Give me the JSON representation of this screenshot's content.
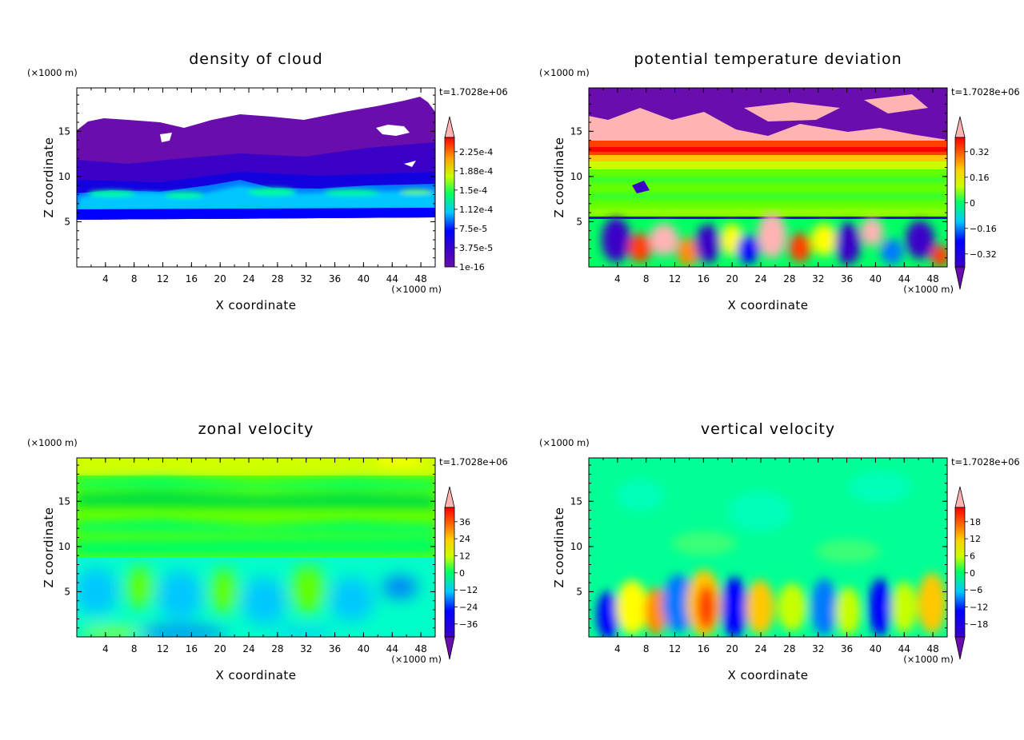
{
  "chart_data": [
    {
      "type": "heatmap",
      "title": "density of cloud",
      "xlabel": "X coordinate",
      "ylabel": "Z coordinate",
      "x_unit": "(×1000 m)",
      "y_unit": "(×1000 m)",
      "time_label": "t=1.7028e+06",
      "xlim": [
        0,
        50
      ],
      "ylim": [
        0,
        19.8
      ],
      "x_ticks": [
        "4",
        "8",
        "12",
        "16",
        "20",
        "24",
        "28",
        "32",
        "36",
        "40",
        "44",
        "48"
      ],
      "y_ticks": [
        "5",
        "10",
        "15"
      ],
      "colorbar_labels": [
        "2.25e-4",
        "1.88e-4",
        "1.5e-4",
        "1.12e-4",
        "7.5e-5",
        "3.75e-5",
        "1e-16"
      ],
      "colorbar_top_arrow": true,
      "colorbar_bottom_arrow": false
    },
    {
      "type": "heatmap",
      "title": "potential temperature deviation",
      "xlabel": "X coordinate",
      "ylabel": "Z coordinate",
      "x_unit": "(×1000 m)",
      "y_unit": "(×1000 m)",
      "time_label": "t=1.7028e+06",
      "xlim": [
        0,
        50
      ],
      "ylim": [
        0,
        19.8
      ],
      "x_ticks": [
        "4",
        "8",
        "12",
        "16",
        "20",
        "24",
        "28",
        "32",
        "36",
        "40",
        "44",
        "48"
      ],
      "y_ticks": [
        "5",
        "10",
        "15"
      ],
      "colorbar_labels": [
        "0.32",
        "0.16",
        "0",
        "−0.16",
        "−0.32"
      ],
      "colorbar_top_arrow": true,
      "colorbar_bottom_arrow": true
    },
    {
      "type": "heatmap",
      "title": "zonal velocity",
      "xlabel": "X coordinate",
      "ylabel": "Z coordinate",
      "x_unit": "(×1000 m)",
      "y_unit": "(×1000 m)",
      "time_label": "t=1.7028e+06",
      "xlim": [
        0,
        50
      ],
      "ylim": [
        0,
        19.8
      ],
      "x_ticks": [
        "4",
        "8",
        "12",
        "16",
        "20",
        "24",
        "28",
        "32",
        "36",
        "40",
        "44",
        "48"
      ],
      "y_ticks": [
        "5",
        "10",
        "15"
      ],
      "colorbar_labels": [
        "36",
        "24",
        "12",
        "0",
        "−12",
        "−24",
        "−36"
      ],
      "colorbar_top_arrow": true,
      "colorbar_bottom_arrow": true
    },
    {
      "type": "heatmap",
      "title": "vertical velocity",
      "xlabel": "X coordinate",
      "ylabel": "Z coordinate",
      "x_unit": "(×1000 m)",
      "y_unit": "(×1000 m)",
      "time_label": "t=1.7028e+06",
      "xlim": [
        0,
        50
      ],
      "ylim": [
        0,
        19.8
      ],
      "x_ticks": [
        "4",
        "8",
        "12",
        "16",
        "20",
        "24",
        "28",
        "32",
        "36",
        "40",
        "44",
        "48"
      ],
      "y_ticks": [
        "5",
        "10",
        "15"
      ],
      "colorbar_labels": [
        "18",
        "12",
        "6",
        "0",
        "−6",
        "−12",
        "−18"
      ],
      "colorbar_top_arrow": true,
      "colorbar_bottom_arrow": true
    }
  ],
  "palette": [
    "#6a0dad",
    "#3a00c8",
    "#0000ff",
    "#0078ff",
    "#00c8ff",
    "#00ffc8",
    "#00ff64",
    "#64ff00",
    "#c8ff00",
    "#ffff00",
    "#ffc800",
    "#ff8c00",
    "#ff4000",
    "#ff0000",
    "#ffb4b4"
  ]
}
